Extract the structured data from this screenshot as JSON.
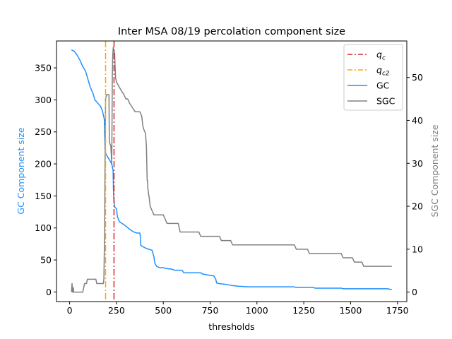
{
  "chart_data": {
    "type": "line",
    "title": "Inter MSA 08/19 percolation component size",
    "xlabel": "thresholds",
    "ylabel_left": "GC Component size",
    "ylabel_right": "SGC Component size",
    "xlim": [
      -70,
      1800
    ],
    "ylim_left": [
      -15,
      392
    ],
    "ylim_right": [
      -2.2,
      58.5
    ],
    "xticks": [
      0,
      250,
      500,
      750,
      1000,
      1250,
      1500,
      1750
    ],
    "yticks_left": [
      0,
      50,
      100,
      150,
      200,
      250,
      300,
      350
    ],
    "yticks_right": [
      0,
      10,
      20,
      30,
      40,
      50
    ],
    "legend_position": "top-right",
    "grid": false,
    "colors": {
      "qc": "#d62728",
      "qc2": "#ffa500",
      "gc": "#1e90ff",
      "sgc": "#808080",
      "gc_axis_label": "#1e90ff",
      "sgc_axis_label": "#808080"
    },
    "vlines": [
      {
        "name": "q_c",
        "x": 237
      },
      {
        "name": "q_c2",
        "x": 192
      }
    ],
    "legend": [
      {
        "key": "qc",
        "label": "q",
        "sub": "c",
        "style": "dashdot"
      },
      {
        "key": "qc2",
        "label": "q",
        "sub": "c2",
        "style": "dashdot"
      },
      {
        "key": "gc",
        "label": "GC",
        "style": "solid"
      },
      {
        "key": "sgc",
        "label": "SGC",
        "style": "solid"
      }
    ],
    "series": [
      {
        "name": "GC",
        "axis": "left",
        "points": [
          [
            10,
            378
          ],
          [
            25,
            376
          ],
          [
            40,
            370
          ],
          [
            55,
            362
          ],
          [
            70,
            352
          ],
          [
            85,
            345
          ],
          [
            95,
            335
          ],
          [
            110,
            320
          ],
          [
            125,
            310
          ],
          [
            135,
            300
          ],
          [
            150,
            295
          ],
          [
            165,
            290
          ],
          [
            175,
            283
          ],
          [
            185,
            270
          ],
          [
            187,
            245
          ],
          [
            190,
            220
          ],
          [
            195,
            215
          ],
          [
            205,
            210
          ],
          [
            215,
            205
          ],
          [
            225,
            200
          ],
          [
            232,
            190
          ],
          [
            234,
            160
          ],
          [
            236,
            145
          ],
          [
            240,
            133
          ],
          [
            250,
            130
          ],
          [
            255,
            118
          ],
          [
            265,
            110
          ],
          [
            280,
            107
          ],
          [
            300,
            103
          ],
          [
            320,
            98
          ],
          [
            340,
            94
          ],
          [
            360,
            92
          ],
          [
            375,
            92
          ],
          [
            378,
            85
          ],
          [
            380,
            73
          ],
          [
            395,
            70
          ],
          [
            410,
            68
          ],
          [
            440,
            65
          ],
          [
            450,
            55
          ],
          [
            455,
            45
          ],
          [
            465,
            40
          ],
          [
            480,
            38
          ],
          [
            500,
            38
          ],
          [
            510,
            37
          ],
          [
            530,
            36
          ],
          [
            540,
            36
          ],
          [
            560,
            34
          ],
          [
            600,
            34
          ],
          [
            610,
            30
          ],
          [
            700,
            30
          ],
          [
            710,
            28
          ],
          [
            750,
            26
          ],
          [
            770,
            25
          ],
          [
            780,
            20
          ],
          [
            785,
            14
          ],
          [
            800,
            13
          ],
          [
            830,
            12
          ],
          [
            850,
            11
          ],
          [
            870,
            10
          ],
          [
            900,
            9
          ],
          [
            950,
            8
          ],
          [
            1000,
            8
          ],
          [
            1100,
            8
          ],
          [
            1200,
            8
          ],
          [
            1210,
            7
          ],
          [
            1300,
            7
          ],
          [
            1310,
            6
          ],
          [
            1400,
            6
          ],
          [
            1450,
            6
          ],
          [
            1460,
            5
          ],
          [
            1550,
            5
          ],
          [
            1600,
            5
          ],
          [
            1700,
            5
          ],
          [
            1710,
            4
          ],
          [
            1720,
            4
          ]
        ]
      },
      {
        "name": "SGC",
        "axis": "right",
        "points": [
          [
            10,
            0
          ],
          [
            13,
            2
          ],
          [
            16,
            0
          ],
          [
            20,
            1
          ],
          [
            22,
            0
          ],
          [
            30,
            0
          ],
          [
            40,
            0
          ],
          [
            50,
            0
          ],
          [
            60,
            0
          ],
          [
            70,
            0
          ],
          [
            75,
            1
          ],
          [
            80,
            2
          ],
          [
            90,
            2
          ],
          [
            95,
            3
          ],
          [
            100,
            3
          ],
          [
            130,
            3
          ],
          [
            140,
            3
          ],
          [
            145,
            2
          ],
          [
            170,
            2
          ],
          [
            180,
            2
          ],
          [
            183,
            3
          ],
          [
            187,
            15
          ],
          [
            189,
            30
          ],
          [
            192,
            45
          ],
          [
            198,
            46
          ],
          [
            210,
            46
          ],
          [
            212,
            35
          ],
          [
            220,
            34
          ],
          [
            225,
            30
          ],
          [
            228,
            50
          ],
          [
            230,
            55
          ],
          [
            233,
            57
          ],
          [
            236,
            56
          ],
          [
            240,
            56
          ],
          [
            245,
            50
          ],
          [
            250,
            49
          ],
          [
            262,
            48
          ],
          [
            275,
            47
          ],
          [
            290,
            46
          ],
          [
            300,
            45
          ],
          [
            310,
            45
          ],
          [
            320,
            44
          ],
          [
            335,
            43
          ],
          [
            350,
            42
          ],
          [
            360,
            42
          ],
          [
            370,
            42
          ],
          [
            375,
            42
          ],
          [
            385,
            41
          ],
          [
            390,
            39
          ],
          [
            395,
            38
          ],
          [
            405,
            37
          ],
          [
            410,
            34
          ],
          [
            412,
            30
          ],
          [
            414,
            26
          ],
          [
            416,
            26
          ],
          [
            418,
            24
          ],
          [
            421,
            23
          ],
          [
            425,
            22
          ],
          [
            430,
            20
          ],
          [
            440,
            19
          ],
          [
            450,
            18
          ],
          [
            500,
            18
          ],
          [
            510,
            17
          ],
          [
            520,
            16
          ],
          [
            580,
            16
          ],
          [
            585,
            15
          ],
          [
            590,
            14
          ],
          [
            690,
            14
          ],
          [
            700,
            13
          ],
          [
            800,
            13
          ],
          [
            810,
            12
          ],
          [
            860,
            12
          ],
          [
            870,
            11
          ],
          [
            1100,
            11
          ],
          [
            1200,
            11
          ],
          [
            1210,
            10
          ],
          [
            1270,
            10
          ],
          [
            1280,
            9
          ],
          [
            1350,
            9
          ],
          [
            1450,
            9
          ],
          [
            1460,
            8
          ],
          [
            1510,
            8
          ],
          [
            1520,
            7
          ],
          [
            1560,
            7
          ],
          [
            1570,
            6
          ],
          [
            1650,
            6
          ],
          [
            1720,
            6
          ]
        ]
      }
    ]
  }
}
